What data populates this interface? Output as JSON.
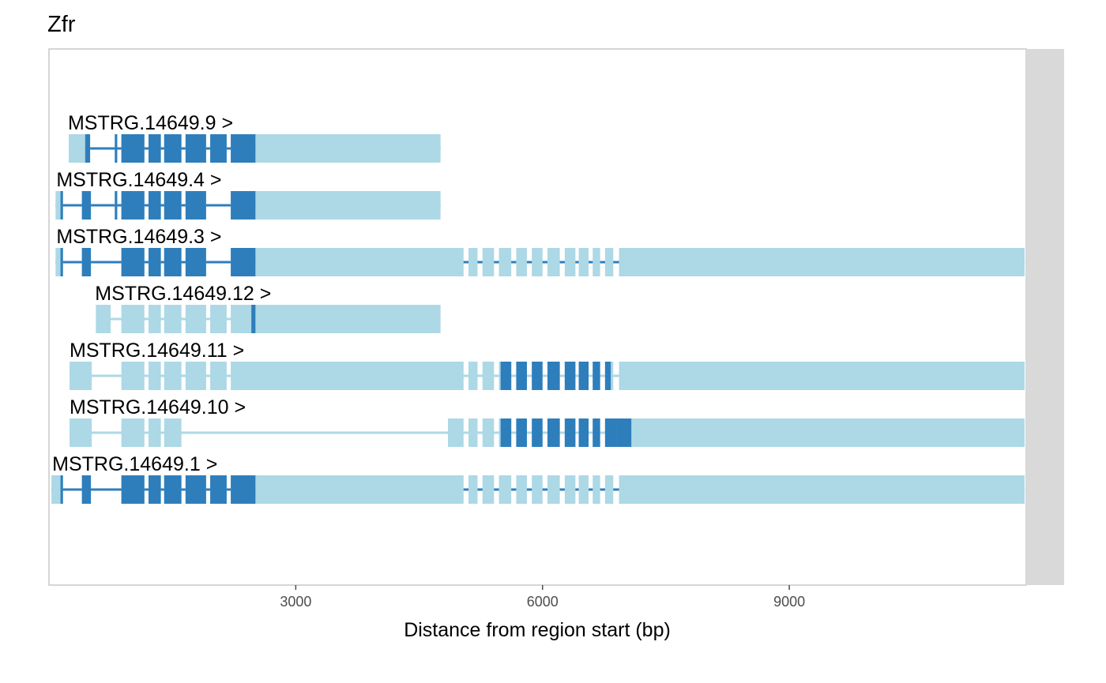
{
  "chart_data": {
    "type": "gene-track",
    "title": "Zfr",
    "xlabel": "Distance from region start (bp)",
    "xlim": [
      0,
      11880
    ],
    "x_ticks": [
      3000,
      6000,
      9000
    ],
    "x_tick_labels": [
      "3000",
      "6000",
      "9000"
    ],
    "strand_marker": ">",
    "colors": {
      "utr": "#add8e6",
      "cds": "#2e7ebc",
      "panel_border": "#c8c8c8",
      "strip": "#d9d9d9",
      "tick_text": "#4d4d4d"
    },
    "transcripts": [
      {
        "name": "MSTRG.14649.9",
        "label": "MSTRG.14649.9 >",
        "intron_color": "cds",
        "label_x": 230,
        "exons": [
          [
            240,
            440
          ],
          [
            440,
            500
          ],
          [
            800,
            830
          ],
          [
            880,
            1160
          ],
          [
            1210,
            1360
          ],
          [
            1400,
            1610
          ],
          [
            1660,
            1910
          ],
          [
            1960,
            2160
          ],
          [
            2210,
            2510
          ],
          [
            2510,
            4760
          ]
        ],
        "cds": [
          [
            440,
            500
          ],
          [
            800,
            830
          ],
          [
            880,
            1160
          ],
          [
            1210,
            1360
          ],
          [
            1400,
            1610
          ],
          [
            1660,
            1910
          ],
          [
            1960,
            2160
          ],
          [
            2210,
            2510
          ]
        ]
      },
      {
        "name": "MSTRG.14649.4",
        "label": "MSTRG.14649.4 >",
        "intron_color": "cds",
        "label_x": 90,
        "exons": [
          [
            80,
            140
          ],
          [
            140,
            170
          ],
          [
            400,
            510
          ],
          [
            800,
            830
          ],
          [
            880,
            1160
          ],
          [
            1210,
            1360
          ],
          [
            1400,
            1610
          ],
          [
            1660,
            1910
          ],
          [
            2210,
            2510
          ],
          [
            2510,
            4760
          ]
        ],
        "cds": [
          [
            140,
            170
          ],
          [
            400,
            510
          ],
          [
            800,
            830
          ],
          [
            880,
            1160
          ],
          [
            1210,
            1360
          ],
          [
            1400,
            1610
          ],
          [
            1660,
            1910
          ],
          [
            2210,
            2510
          ]
        ]
      },
      {
        "name": "MSTRG.14649.3",
        "label": "MSTRG.14649.3 >",
        "intron_color": "cds",
        "label_x": 90,
        "exons": [
          [
            80,
            140
          ],
          [
            140,
            170
          ],
          [
            400,
            510
          ],
          [
            880,
            1160
          ],
          [
            1210,
            1360
          ],
          [
            1400,
            1610
          ],
          [
            1660,
            1910
          ],
          [
            2210,
            2510
          ],
          [
            2510,
            5040
          ],
          [
            5100,
            5210
          ],
          [
            5270,
            5410
          ],
          [
            5470,
            5620
          ],
          [
            5680,
            5810
          ],
          [
            5870,
            6000
          ],
          [
            6060,
            6210
          ],
          [
            6270,
            6400
          ],
          [
            6440,
            6560
          ],
          [
            6610,
            6700
          ],
          [
            6760,
            6860
          ],
          [
            6930,
            11860
          ]
        ],
        "cds": [
          [
            140,
            170
          ],
          [
            400,
            510
          ],
          [
            880,
            1160
          ],
          [
            1210,
            1360
          ],
          [
            1400,
            1610
          ],
          [
            1660,
            1910
          ],
          [
            2210,
            2510
          ]
        ]
      },
      {
        "name": "MSTRG.14649.12",
        "label": "MSTRG.14649.12 >",
        "intron_color": "utr",
        "label_x": 560,
        "exons": [
          [
            570,
            750
          ],
          [
            880,
            1160
          ],
          [
            1210,
            1360
          ],
          [
            1400,
            1610
          ],
          [
            1660,
            1910
          ],
          [
            1960,
            2160
          ],
          [
            2210,
            2460
          ],
          [
            2460,
            2510
          ],
          [
            2510,
            4760
          ]
        ],
        "cds": [
          [
            2460,
            2510
          ]
        ]
      },
      {
        "name": "MSTRG.14649.11",
        "label": "MSTRG.14649.11 >",
        "intron_color": "utr",
        "label_x": 250,
        "exons": [
          [
            250,
            520
          ],
          [
            880,
            1160
          ],
          [
            1210,
            1360
          ],
          [
            1400,
            1610
          ],
          [
            1660,
            1910
          ],
          [
            1960,
            2160
          ],
          [
            2210,
            5040
          ],
          [
            5100,
            5210
          ],
          [
            5270,
            5410
          ],
          [
            5470,
            5490
          ],
          [
            5490,
            5620
          ],
          [
            5680,
            5810
          ],
          [
            5870,
            6000
          ],
          [
            6060,
            6210
          ],
          [
            6270,
            6400
          ],
          [
            6440,
            6560
          ],
          [
            6610,
            6700
          ],
          [
            6760,
            6830
          ],
          [
            6830,
            6860
          ],
          [
            6930,
            11860
          ]
        ],
        "cds": [
          [
            5490,
            5620
          ],
          [
            5680,
            5810
          ],
          [
            5870,
            6000
          ],
          [
            6060,
            6210
          ],
          [
            6270,
            6400
          ],
          [
            6440,
            6560
          ],
          [
            6610,
            6700
          ],
          [
            6760,
            6830
          ]
        ]
      },
      {
        "name": "MSTRG.14649.10",
        "label": "MSTRG.14649.10 >",
        "intron_color": "utr",
        "label_x": 250,
        "exons": [
          [
            250,
            520
          ],
          [
            880,
            1160
          ],
          [
            1210,
            1360
          ],
          [
            1400,
            1610
          ],
          [
            4850,
            5040
          ],
          [
            5100,
            5210
          ],
          [
            5270,
            5410
          ],
          [
            5470,
            5490
          ],
          [
            5490,
            5620
          ],
          [
            5680,
            5810
          ],
          [
            5870,
            6000
          ],
          [
            6060,
            6210
          ],
          [
            6270,
            6400
          ],
          [
            6440,
            6560
          ],
          [
            6610,
            6700
          ],
          [
            6760,
            6900
          ],
          [
            6900,
            7080
          ],
          [
            7080,
            11860
          ]
        ],
        "cds": [
          [
            5490,
            5620
          ],
          [
            5680,
            5810
          ],
          [
            5870,
            6000
          ],
          [
            6060,
            6210
          ],
          [
            6270,
            6400
          ],
          [
            6440,
            6560
          ],
          [
            6610,
            6700
          ],
          [
            6760,
            6900
          ],
          [
            6900,
            7080
          ]
        ]
      },
      {
        "name": "MSTRG.14649.1",
        "label": "MSTRG.14649.1 >",
        "intron_color": "cds",
        "label_x": 40,
        "exons": [
          [
            30,
            140
          ],
          [
            140,
            170
          ],
          [
            400,
            510
          ],
          [
            880,
            1160
          ],
          [
            1210,
            1360
          ],
          [
            1400,
            1610
          ],
          [
            1660,
            1910
          ],
          [
            1960,
            2160
          ],
          [
            2210,
            2510
          ],
          [
            2510,
            5040
          ],
          [
            5100,
            5210
          ],
          [
            5270,
            5410
          ],
          [
            5470,
            5620
          ],
          [
            5680,
            5810
          ],
          [
            5870,
            6000
          ],
          [
            6060,
            6210
          ],
          [
            6270,
            6400
          ],
          [
            6440,
            6560
          ],
          [
            6610,
            6700
          ],
          [
            6760,
            6860
          ],
          [
            6930,
            11860
          ]
        ],
        "cds": [
          [
            140,
            170
          ],
          [
            400,
            510
          ],
          [
            880,
            1160
          ],
          [
            1210,
            1360
          ],
          [
            1400,
            1610
          ],
          [
            1660,
            1910
          ],
          [
            1960,
            2160
          ],
          [
            2210,
            2510
          ]
        ]
      }
    ]
  }
}
